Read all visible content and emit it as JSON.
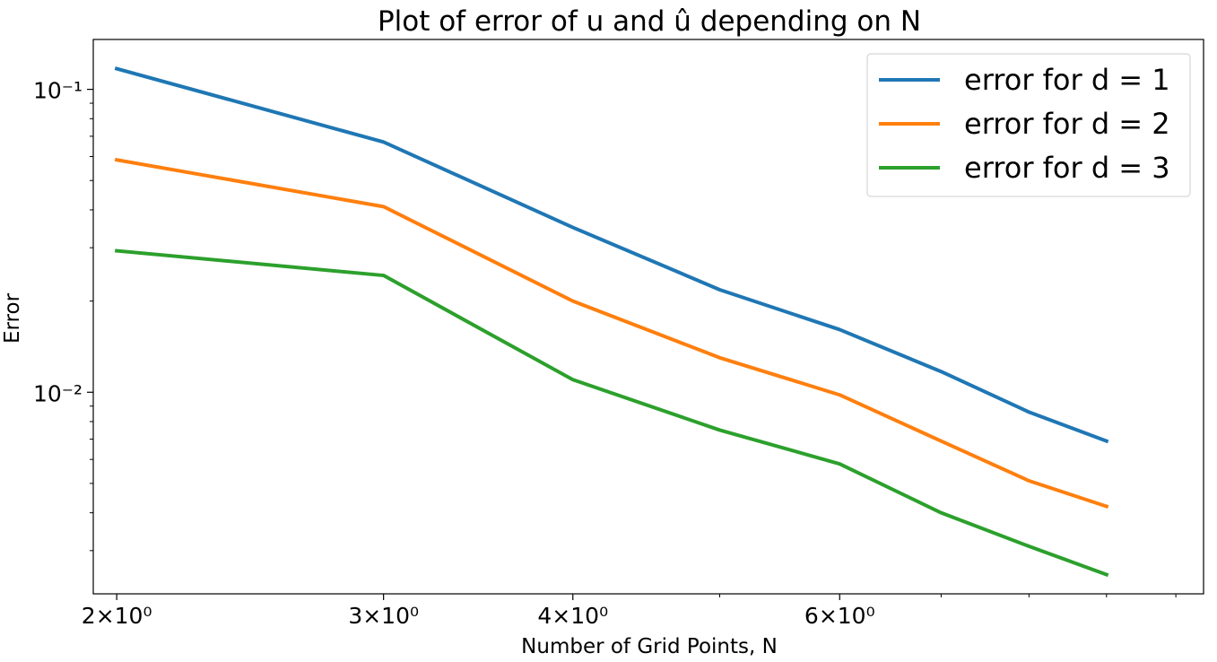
{
  "chart_data": {
    "type": "line",
    "title": "Plot of error of u and û depending on N",
    "xlabel": "Number of Grid Points, N",
    "ylabel": "Error",
    "xscale": "log",
    "yscale": "log",
    "xlim": [
      1.93,
      10.43
    ],
    "ylim": [
      0.00216,
      0.1461
    ],
    "x_ticks": [
      {
        "value": 2,
        "label": "2×10⁰"
      },
      {
        "value": 3,
        "label": "3×10⁰"
      },
      {
        "value": 4,
        "label": "4×10⁰"
      },
      {
        "value": 6,
        "label": "6×10⁰"
      }
    ],
    "y_ticks": [
      {
        "value": 0.1,
        "label": "10⁻¹"
      },
      {
        "value": 0.01,
        "label": "10⁻²"
      }
    ],
    "x": [
      2,
      3,
      4,
      5,
      6,
      7,
      8,
      9
    ],
    "series": [
      {
        "name": "error for d = 1",
        "color": "#1f77b4",
        "values": [
          0.117,
          0.067,
          0.035,
          0.0218,
          0.0161,
          0.0117,
          0.0086,
          0.0069
        ]
      },
      {
        "name": "error for d = 2",
        "color": "#ff7f0e",
        "values": [
          0.0585,
          0.041,
          0.02,
          0.013,
          0.0098,
          0.0069,
          0.0051,
          0.0042
        ]
      },
      {
        "name": "error for d = 3",
        "color": "#2ca02c",
        "values": [
          0.0293,
          0.0243,
          0.011,
          0.0075,
          0.0058,
          0.004,
          0.0031,
          0.0025
        ]
      }
    ],
    "legend": {
      "position": "top-right"
    },
    "grid": false
  }
}
